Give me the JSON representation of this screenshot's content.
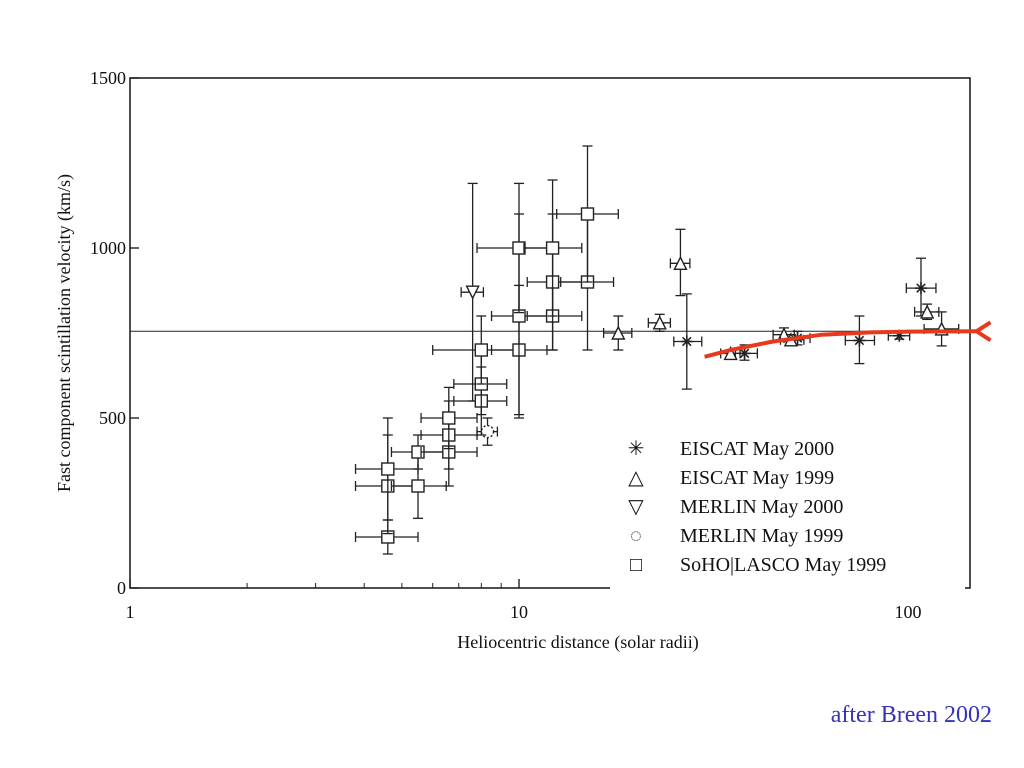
{
  "chart_data": {
    "type": "scatter",
    "title": "",
    "xlabel": "Heliocentric distance (solar radii)",
    "ylabel": "Fast component scintillation velocity (km/s)",
    "xscale": "log",
    "xlim": [
      1,
      150
    ],
    "ylim": [
      0,
      1500
    ],
    "xticks": [
      {
        "value": 1,
        "label": "1"
      },
      {
        "value": 10,
        "label": "10"
      },
      {
        "value": 100,
        "label": "100"
      }
    ],
    "yticks": [
      {
        "value": 0,
        "label": "0"
      },
      {
        "value": 500,
        "label": "500"
      },
      {
        "value": 1000,
        "label": "1000"
      },
      {
        "value": 1500,
        "label": "1500"
      }
    ],
    "reference_line_y": 755,
    "legend_position": "bottom-right",
    "series": [
      {
        "name": "EISCAT May 2000",
        "marker": "asterisk",
        "points": [
          {
            "x": 27,
            "y": 725,
            "xlo": 25,
            "xhi": 29.5,
            "ylo": 585,
            "yhi": 865
          },
          {
            "x": 38,
            "y": 690,
            "xlo": 36,
            "xhi": 41,
            "ylo": 670,
            "yhi": 715
          },
          {
            "x": 52,
            "y": 735,
            "xlo": 48,
            "xhi": 56,
            "ylo": 715,
            "yhi": 755
          },
          {
            "x": 75,
            "y": 728,
            "xlo": 69,
            "xhi": 82,
            "ylo": 660,
            "yhi": 800
          },
          {
            "x": 95,
            "y": 742,
            "xlo": 89,
            "xhi": 101,
            "ylo": 732,
            "yhi": 752
          },
          {
            "x": 108,
            "y": 882,
            "xlo": 99,
            "xhi": 118,
            "ylo": 800,
            "yhi": 970
          }
        ]
      },
      {
        "name": "EISCAT May 1999",
        "marker": "triangle-up",
        "points": [
          {
            "x": 18,
            "y": 750,
            "xlo": 16.5,
            "xhi": 19.5,
            "ylo": 700,
            "yhi": 800
          },
          {
            "x": 23,
            "y": 780,
            "xlo": 21.5,
            "xhi": 24.5,
            "ylo": 755,
            "yhi": 805
          },
          {
            "x": 26,
            "y": 955,
            "xlo": 24.5,
            "xhi": 27.5,
            "ylo": 860,
            "yhi": 1055
          },
          {
            "x": 35,
            "y": 690,
            "xlo": 33,
            "xhi": 37,
            "ylo": 680,
            "yhi": 700
          },
          {
            "x": 48,
            "y": 745,
            "xlo": 45,
            "xhi": 51,
            "ylo": 725,
            "yhi": 765
          },
          {
            "x": 50,
            "y": 730,
            "xlo": 47,
            "xhi": 54,
            "ylo": 715,
            "yhi": 745
          },
          {
            "x": 112,
            "y": 812,
            "xlo": 104,
            "xhi": 120,
            "ylo": 790,
            "yhi": 835
          },
          {
            "x": 122,
            "y": 762,
            "xlo": 110,
            "xhi": 135,
            "ylo": 712,
            "yhi": 812
          }
        ]
      },
      {
        "name": "MERLIN May 2000",
        "marker": "triangle-down",
        "points": [
          {
            "x": 7.6,
            "y": 870,
            "xlo": 7.1,
            "xhi": 8.1,
            "ylo": 550,
            "yhi": 1190
          }
        ]
      },
      {
        "name": "MERLIN May 1999",
        "marker": "circle",
        "points": [
          {
            "x": 8.3,
            "y": 460,
            "xlo": 7.8,
            "xhi": 8.8,
            "ylo": 420,
            "yhi": 500
          }
        ]
      },
      {
        "name": "SoHO|LASCO May 1999",
        "marker": "square",
        "points": [
          {
            "x": 4.6,
            "y": 150,
            "xlo": 3.8,
            "xhi": 5.5,
            "ylo": 100,
            "yhi": 200
          },
          {
            "x": 4.6,
            "y": 300,
            "xlo": 3.8,
            "xhi": 5.5,
            "ylo": 160,
            "yhi": 450
          },
          {
            "x": 4.6,
            "y": 350,
            "xlo": 3.8,
            "xhi": 5.5,
            "ylo": 200,
            "yhi": 500
          },
          {
            "x": 5.5,
            "y": 300,
            "xlo": 4.7,
            "xhi": 6.5,
            "ylo": 205,
            "yhi": 395
          },
          {
            "x": 5.5,
            "y": 400,
            "xlo": 4.7,
            "xhi": 6.5,
            "ylo": 350,
            "yhi": 450
          },
          {
            "x": 6.6,
            "y": 400,
            "xlo": 5.6,
            "xhi": 7.8,
            "ylo": 300,
            "yhi": 500
          },
          {
            "x": 6.6,
            "y": 450,
            "xlo": 5.6,
            "xhi": 7.8,
            "ylo": 350,
            "yhi": 550
          },
          {
            "x": 6.6,
            "y": 500,
            "xlo": 5.6,
            "xhi": 7.8,
            "ylo": 410,
            "yhi": 590
          },
          {
            "x": 8.0,
            "y": 550,
            "xlo": 6.8,
            "xhi": 9.3,
            "ylo": 450,
            "yhi": 650
          },
          {
            "x": 8.0,
            "y": 600,
            "xlo": 6.8,
            "xhi": 9.3,
            "ylo": 510,
            "yhi": 690
          },
          {
            "x": 8.0,
            "y": 700,
            "xlo": 6.0,
            "xhi": 10.0,
            "ylo": 600,
            "yhi": 800
          },
          {
            "x": 10.0,
            "y": 700,
            "xlo": 8.5,
            "xhi": 11.8,
            "ylo": 510,
            "yhi": 890
          },
          {
            "x": 10.0,
            "y": 800,
            "xlo": 8.5,
            "xhi": 12.5,
            "ylo": 500,
            "yhi": 1100
          },
          {
            "x": 10.0,
            "y": 1000,
            "xlo": 7.8,
            "xhi": 12.2,
            "ylo": 810,
            "yhi": 1190
          },
          {
            "x": 12.2,
            "y": 800,
            "xlo": 10.5,
            "xhi": 14.5,
            "ylo": 700,
            "yhi": 900
          },
          {
            "x": 12.2,
            "y": 900,
            "xlo": 10.5,
            "xhi": 14.5,
            "ylo": 700,
            "yhi": 1100
          },
          {
            "x": 12.2,
            "y": 1000,
            "xlo": 10.3,
            "xhi": 14.5,
            "ylo": 800,
            "yhi": 1200
          },
          {
            "x": 15.0,
            "y": 900,
            "xlo": 12.8,
            "xhi": 17.5,
            "ylo": 700,
            "yhi": 1100
          },
          {
            "x": 15.0,
            "y": 1100,
            "xlo": 12.5,
            "xhi": 18.0,
            "ylo": 900,
            "yhi": 1300
          }
        ]
      }
    ],
    "model_curve": {
      "color": "#e8391c",
      "points": [
        [
          30,
          680
        ],
        [
          35,
          700
        ],
        [
          45,
          725
        ],
        [
          60,
          745
        ],
        [
          80,
          752
        ],
        [
          100,
          754
        ],
        [
          150,
          755
        ]
      ]
    }
  },
  "legend": {
    "items": [
      {
        "symbol": "✳",
        "label": "EISCAT May 2000"
      },
      {
        "symbol": "△",
        "label": "EISCAT May 1999"
      },
      {
        "symbol": "▽",
        "label": "MERLIN May 2000"
      },
      {
        "symbol": "◌",
        "label": "MERLIN May 1999"
      },
      {
        "symbol": "□",
        "label": "SoHO|LASCO May 1999"
      }
    ]
  },
  "credit": "after Breen 2002"
}
